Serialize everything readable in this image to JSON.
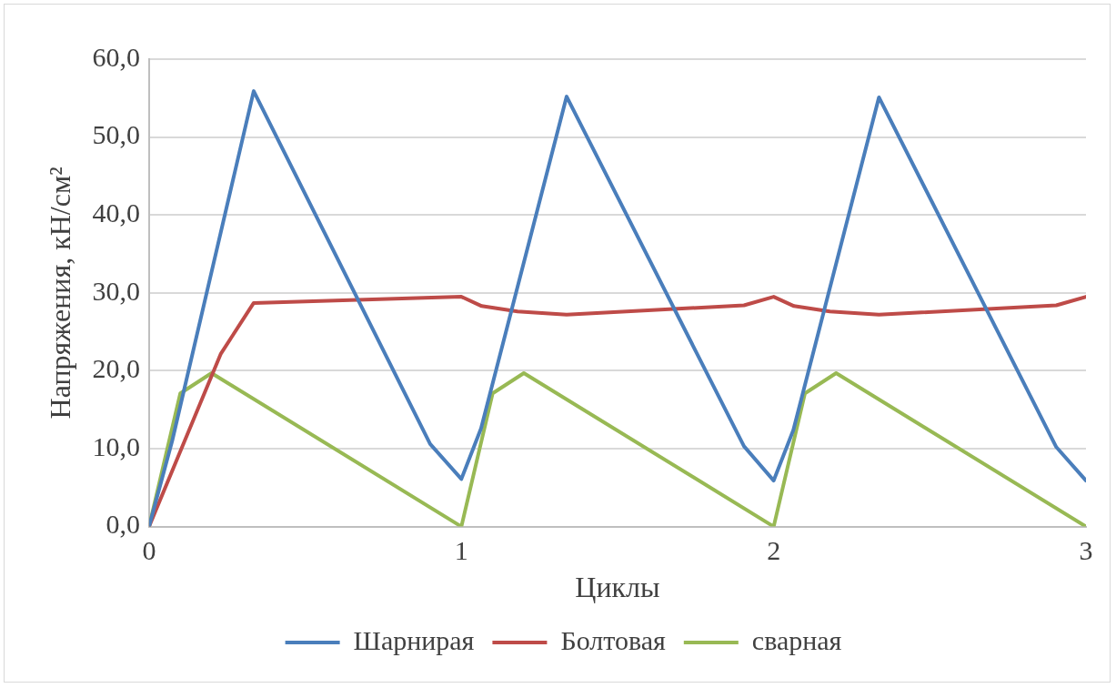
{
  "chart_data": {
    "type": "line",
    "xlabel": "Циклы",
    "ylabel": "Напряжения, кН/см²",
    "xlim": [
      0,
      3
    ],
    "xticks": [
      0,
      1,
      2,
      3
    ],
    "ylim": [
      0,
      60
    ],
    "yticks": [
      {
        "value": 0,
        "label": "0,0"
      },
      {
        "value": 10,
        "label": "10,0"
      },
      {
        "value": 20,
        "label": "20,0"
      },
      {
        "value": 30,
        "label": "30,0"
      },
      {
        "value": 40,
        "label": "40,0"
      },
      {
        "value": 50,
        "label": "50,0"
      },
      {
        "value": 60,
        "label": "60,0"
      }
    ],
    "grid": "y",
    "legend": "bottom",
    "marker": "none",
    "line_style": "solid",
    "series": [
      {
        "name": "Шарнирая",
        "color": "#4a7ebb",
        "x": [
          0,
          0.074,
          0.335,
          0.9,
          1,
          1.063,
          1.337,
          1.905,
          2,
          2.063,
          2.337,
          2.905,
          3
        ],
        "values": [
          0,
          11,
          55.9,
          10.6,
          6.1,
          12.6,
          55.2,
          10.3,
          5.9,
          12.4,
          55.1,
          10.2,
          5.9
        ]
      },
      {
        "name": "Болтовая",
        "color": "#be4b48",
        "x": [
          0,
          0.23,
          0.335,
          1,
          1.065,
          1.18,
          1.337,
          1.905,
          2,
          2.065,
          2.18,
          2.337,
          2.905,
          3
        ],
        "values": [
          0,
          22.2,
          28.7,
          29.5,
          28.3,
          27.6,
          27.2,
          28.4,
          29.5,
          28.3,
          27.6,
          27.2,
          28.4,
          29.5
        ]
      },
      {
        "name": "сварная",
        "color": "#98b954",
        "x": [
          0,
          0.1,
          0.2,
          1,
          1.1,
          1.2,
          2,
          2.1,
          2.2,
          3
        ],
        "values": [
          0,
          17.1,
          19.7,
          0,
          17.1,
          19.7,
          0,
          17.1,
          19.7,
          0
        ]
      }
    ]
  }
}
